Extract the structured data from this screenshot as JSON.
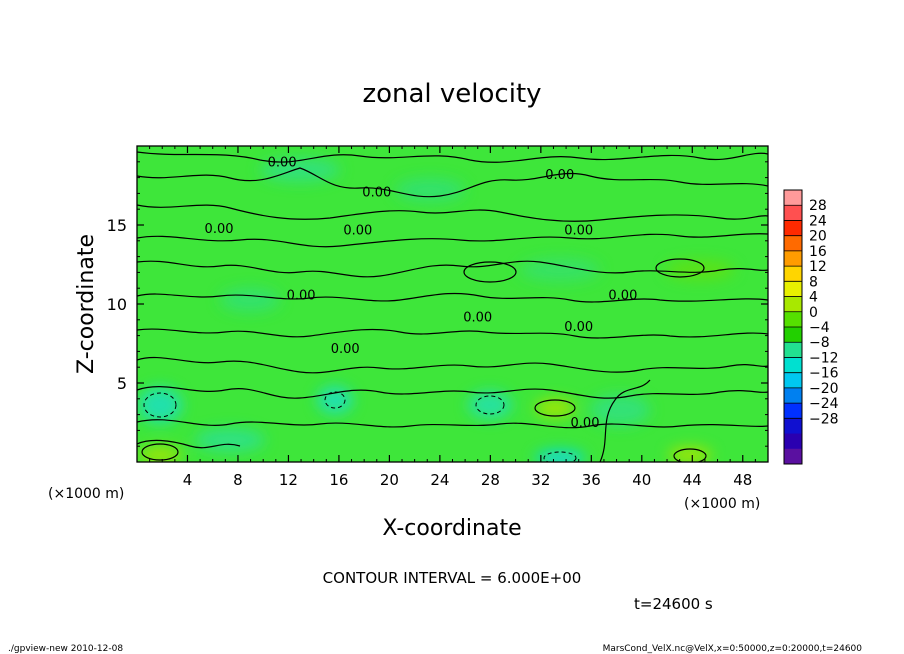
{
  "chart_data": {
    "type": "heatmap",
    "title": "zonal velocity",
    "xlabel": "X-coordinate",
    "ylabel": "Z-coordinate",
    "x_unit_note": "(×1000 m)",
    "z_unit_note": "(×1000 m)",
    "xlim": [
      0,
      50
    ],
    "ylim": [
      0,
      20
    ],
    "x_ticks": [
      "4",
      "8",
      "12",
      "16",
      "20",
      "24",
      "28",
      "32",
      "36",
      "40",
      "44",
      "48"
    ],
    "x_tick_values": [
      4,
      8,
      12,
      16,
      20,
      24,
      28,
      32,
      36,
      40,
      44,
      48
    ],
    "y_ticks": [
      "5",
      "10",
      "15"
    ],
    "y_tick_values": [
      5,
      10,
      15
    ],
    "colorbar_labels": [
      "28",
      "24",
      "20",
      "16",
      "12",
      "8",
      "4",
      "0",
      "−4",
      "−8",
      "−12",
      "−16",
      "−20",
      "−24",
      "−28"
    ],
    "colorbar_colors": [
      "#ff9a9a",
      "#ff5050",
      "#ff2a00",
      "#ff6a00",
      "#ff9c00",
      "#ffd500",
      "#e8f000",
      "#a8e800",
      "#55e000",
      "#22d000",
      "#22e090",
      "#00e0d0",
      "#00c8f0",
      "#0080f0",
      "#0030ff",
      "#1010d0",
      "#2a00b0",
      "#5a10a0"
    ],
    "contour_labels": [
      "0.00",
      "0.00",
      "0.00",
      "0.00",
      "0.00",
      "0.00",
      "0.00",
      "0.00",
      "0.00",
      "0.00",
      "0.00",
      "0.00"
    ],
    "contour_label_positions": [
      [
        11.5,
        18.7
      ],
      [
        19,
        16.8
      ],
      [
        33.5,
        17.9
      ],
      [
        17.5,
        14.4
      ],
      [
        6.5,
        14.5
      ],
      [
        35,
        14.4
      ],
      [
        13,
        10.3
      ],
      [
        38.5,
        10.3
      ],
      [
        27,
        8.9
      ],
      [
        35,
        8.3
      ],
      [
        16.5,
        6.9
      ],
      [
        35.5,
        2.2
      ]
    ],
    "contour_interval_text": "CONTOUR INTERVAL = 6.000E+00",
    "time_text": "t=24600 s",
    "colors": {
      "field_base": "#3ee63a",
      "field_light": "#2ee68a",
      "field_cyan": "#1fe0c8",
      "field_yellow": "#a8e400",
      "contour": "#000000"
    }
  },
  "footer": {
    "left": "./gpview-new  2010-12-08",
    "right": "MarsCond_VelX.nc@VelX,x=0:50000,z=0:20000,t=24600"
  }
}
